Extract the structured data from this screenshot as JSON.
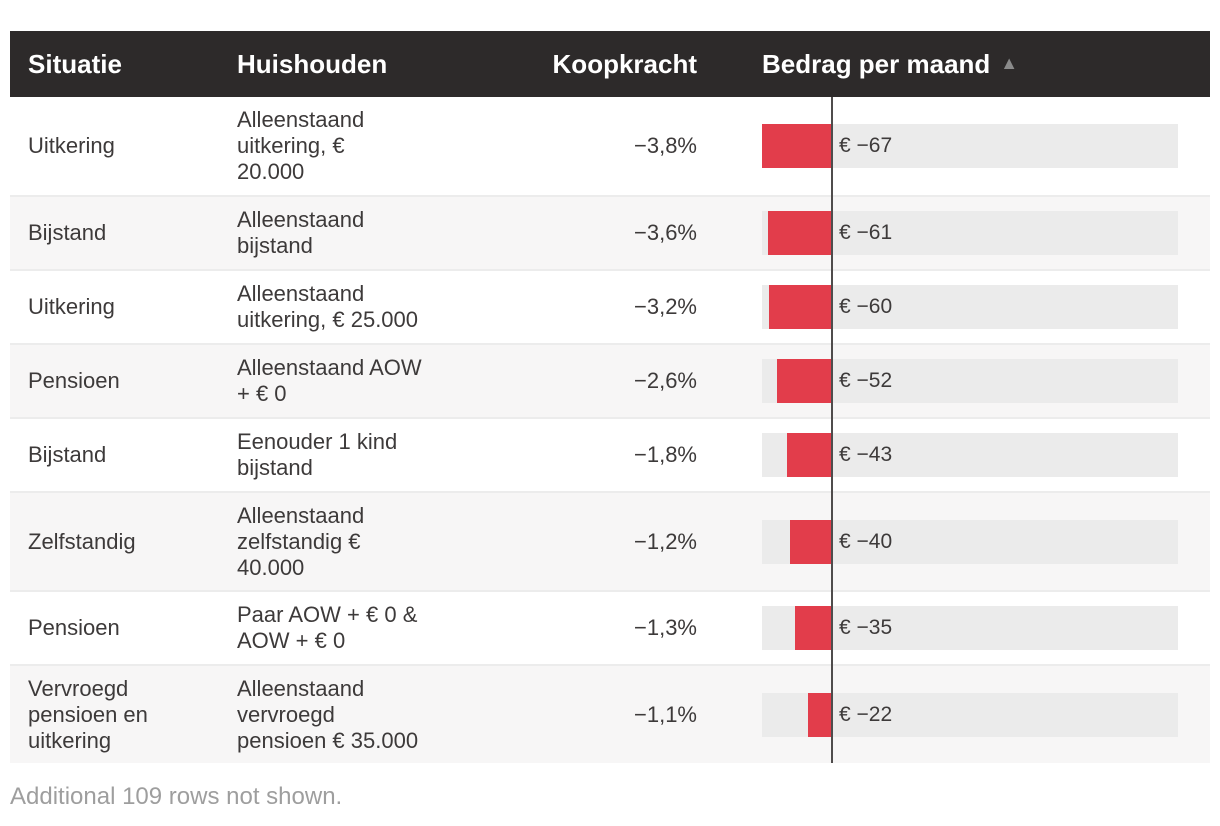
{
  "colors": {
    "header_bg": "#2d2a2a",
    "header_text": "#ffffff",
    "bar_red": "#e23d4b",
    "track_gray": "#ebebeb",
    "row_alt": "#f7f6f6",
    "axis_line": "#4f4c4c",
    "text": "#3d3a3a",
    "muted": "#9e9e9e",
    "border": "#ececec",
    "sort_arrow": "#8a8a8a"
  },
  "table": {
    "columns": {
      "situatie": "Situatie",
      "huishouden": "Huishouden",
      "koopkracht": "Koopkracht",
      "bedrag": "Bedrag per maand"
    },
    "sort": {
      "column": "bedrag",
      "direction": "ascending",
      "arrow": "▲"
    },
    "rows": [
      {
        "situatie": "Uitkering",
        "huishouden": "Alleenstaand\nuitkering, €\n20.000",
        "koopkracht": "−3,8%",
        "bedrag_label": "€ −67",
        "bedrag": -67
      },
      {
        "situatie": "Bijstand",
        "huishouden": "Alleenstaand\nbijstand",
        "koopkracht": "−3,6%",
        "bedrag_label": "€ −61",
        "bedrag": -61
      },
      {
        "situatie": "Uitkering",
        "huishouden": "Alleenstaand\nuitkering, € 25.000",
        "koopkracht": "−3,2%",
        "bedrag_label": "€ −60",
        "bedrag": -60
      },
      {
        "situatie": "Pensioen",
        "huishouden": "Alleenstaand AOW\n+ € 0",
        "koopkracht": "−2,6%",
        "bedrag_label": "€ −52",
        "bedrag": -52
      },
      {
        "situatie": "Bijstand",
        "huishouden": "Eenouder 1 kind\nbijstand",
        "koopkracht": "−1,8%",
        "bedrag_label": "€ −43",
        "bedrag": -43
      },
      {
        "situatie": "Zelfstandig",
        "huishouden": "Alleenstaand\nzelfstandig €\n40.000",
        "koopkracht": "−1,2%",
        "bedrag_label": "€ −40",
        "bedrag": -40
      },
      {
        "situatie": "Pensioen",
        "huishouden": "Paar AOW + € 0 &\nAOW + € 0",
        "koopkracht": "−1,3%",
        "bedrag_label": "€ −35",
        "bedrag": -35
      },
      {
        "situatie": "Vervroegd\npensioen en\nuitkering",
        "huishouden": "Alleenstaand\nvervroegd\npensioen € 35.000",
        "koopkracht": "−1,1%",
        "bedrag_label": "€ −22",
        "bedrag": -22
      }
    ]
  },
  "footer": {
    "note": "Additional 109 rows not shown."
  },
  "chart_data": {
    "type": "bar",
    "orientation": "horizontal",
    "series_name": "Bedrag per maand",
    "categories": [
      "Alleenstaand uitkering, € 20.000",
      "Alleenstaand bijstand",
      "Alleenstaand uitkering, € 25.000",
      "Alleenstaand AOW + € 0",
      "Eenouder 1 kind bijstand",
      "Alleenstaand zelfstandig € 40.000",
      "Paar AOW + € 0 & AOW + € 0",
      "Alleenstaand vervroegd pensioen € 35.000"
    ],
    "values": [
      -67,
      -61,
      -60,
      -52,
      -43,
      -40,
      -35,
      -22
    ],
    "value_labels": [
      "€ −67",
      "€ −61",
      "€ −60",
      "€ −52",
      "€ −43",
      "€ −40",
      "€ −35",
      "€ −22"
    ],
    "koopkracht_percent": [
      "−3,8%",
      "−3,6%",
      "−3,2%",
      "−2,6%",
      "−1,8%",
      "−1,2%",
      "−1,3%",
      "−1,1%"
    ],
    "bar_color": "#e23d4b",
    "axis": {
      "zero_line": true,
      "min": -67,
      "zero_line_color": "#4f4c4c",
      "track_color": "#ebebeb"
    },
    "sorted_by": "Bedrag per maand ascending"
  }
}
